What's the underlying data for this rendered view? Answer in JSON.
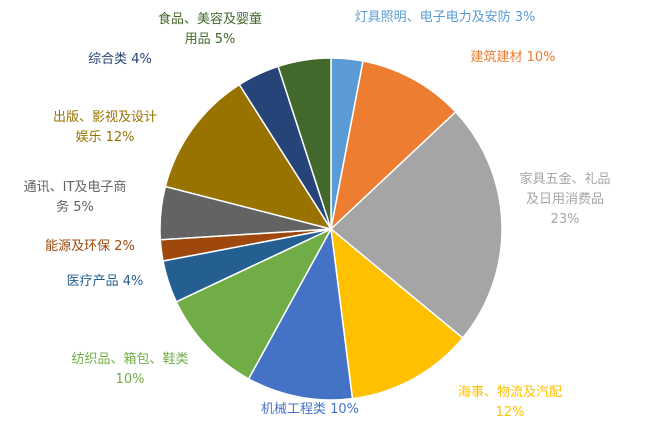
{
  "chart_data": {
    "type": "pie",
    "categories": [
      "灯具照明、电子电力及安防",
      "建筑建材",
      "家具五金、礼品及日用消费品",
      "海事、物流及汽配",
      "机械工程类",
      "纺织品、箱包、鞋类",
      "医疗产品",
      "能源及环保",
      "通讯、IT及电子商务",
      "出版、影视及设计娱乐",
      "综合类",
      "食品、美容及婴童用品"
    ],
    "values": [
      3,
      10,
      23,
      12,
      10,
      10,
      4,
      2,
      5,
      12,
      4,
      5
    ],
    "value_labels": [
      "3%",
      "10%",
      "23%",
      "12%",
      "10%",
      "10%",
      "4%",
      "2%",
      "5%",
      "12%",
      "4%",
      "5%"
    ],
    "colors": [
      "#5b9bd5",
      "#ed7d31",
      "#a5a5a5",
      "#ffc000",
      "#4472c4",
      "#70ad47",
      "#255e91",
      "#9e480e",
      "#636363",
      "#997300",
      "#264478",
      "#43682b"
    ]
  }
}
